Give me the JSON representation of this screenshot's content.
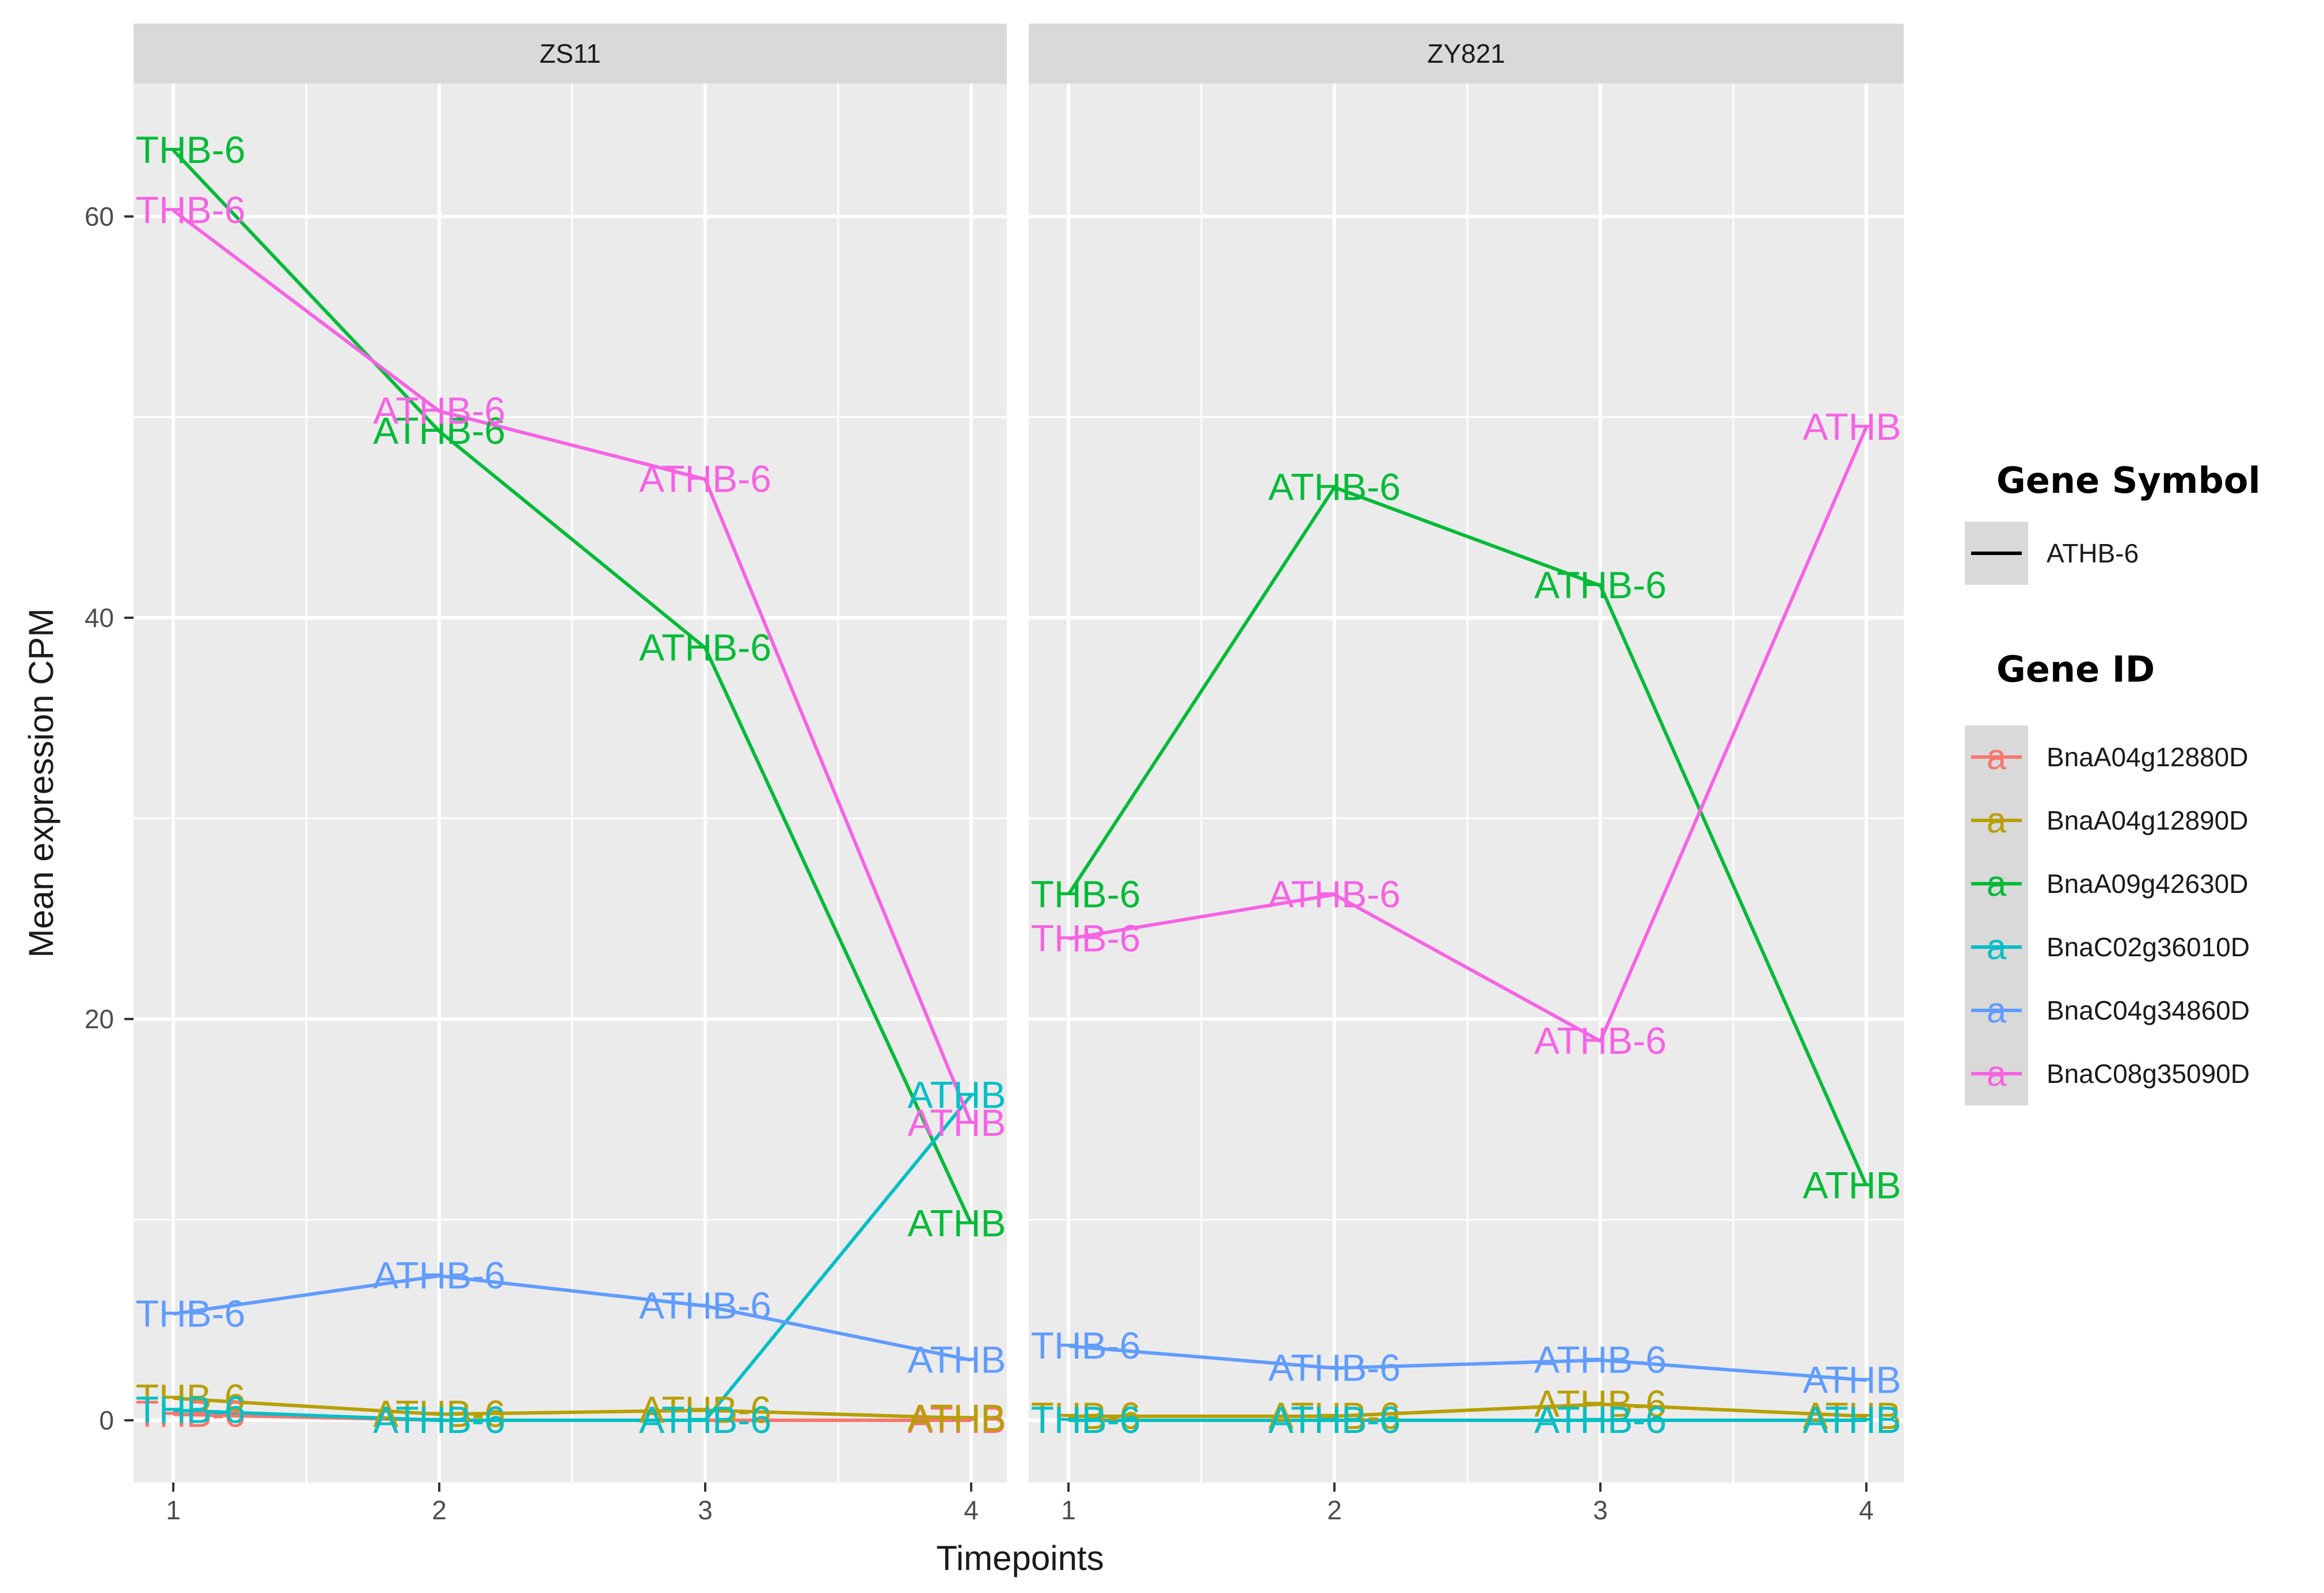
{
  "chart_data": {
    "type": "line",
    "xlabel": "Timepoints",
    "ylabel": "Mean expression CPM",
    "x": [
      1,
      2,
      3,
      4
    ],
    "x_ticks": [
      "1",
      "2",
      "3",
      "4"
    ],
    "y_ticks": [
      "0",
      "20",
      "40",
      "60"
    ],
    "ylim": [
      -3.2,
      67.3
    ],
    "grid": true,
    "panels": [
      {
        "name": "ZS11",
        "series": [
          {
            "gene_id": "BnaA04g12880D",
            "values": [
              0.3,
              0.0,
              0.0,
              0.0
            ],
            "label_texts": [
              "THB-6",
              "ATHB-6",
              "ATHB-6",
              "ATHB"
            ]
          },
          {
            "gene_id": "BnaA04g12890D",
            "values": [
              1.1,
              0.3,
              0.5,
              0.1
            ],
            "label_texts": [
              "THB-6",
              "ATHB-6",
              "ATHB-6",
              "ATHB"
            ]
          },
          {
            "gene_id": "BnaA09g42630D",
            "values": [
              63.3,
              49.3,
              38.5,
              9.8
            ],
            "label_texts": [
              "THB-6",
              "ATHB-6",
              "ATHB-6",
              "ATHB"
            ]
          },
          {
            "gene_id": "BnaC02g36010D",
            "values": [
              0.5,
              0.0,
              0.0,
              16.2
            ],
            "label_texts": [
              "THB-6",
              "ATHB-6",
              "ATHB-6",
              "ATHB"
            ]
          },
          {
            "gene_id": "BnaC04g34860D",
            "values": [
              5.3,
              7.2,
              5.7,
              3.0
            ],
            "label_texts": [
              "THB-6",
              "ATHB-6",
              "ATHB-6",
              "ATHB"
            ]
          },
          {
            "gene_id": "BnaC08g35090D",
            "values": [
              60.3,
              50.3,
              46.9,
              14.8
            ],
            "label_texts": [
              "THB-6",
              "ATHB-6",
              "ATHB-6",
              "ATHB"
            ]
          }
        ]
      },
      {
        "name": "ZY821",
        "series": [
          {
            "gene_id": "BnaA04g12880D",
            "values": [
              0.0,
              0.0,
              0.0,
              0.0
            ],
            "label_texts": [
              "THB-6",
              "ATHB-6",
              "ATHB-6",
              "ATHB"
            ]
          },
          {
            "gene_id": "BnaA04g12890D",
            "values": [
              0.2,
              0.2,
              0.8,
              0.2
            ],
            "label_texts": [
              "THB-6",
              "ATHB-6",
              "ATHB-6",
              "ATHB"
            ]
          },
          {
            "gene_id": "BnaA09g42630D",
            "values": [
              26.2,
              46.5,
              41.6,
              11.7
            ],
            "label_texts": [
              "THB-6",
              "ATHB-6",
              "ATHB-6",
              "ATHB"
            ]
          },
          {
            "gene_id": "BnaC02g36010D",
            "values": [
              0.0,
              0.0,
              0.0,
              0.0
            ],
            "label_texts": [
              "THB-6",
              "ATHB-6",
              "ATHB-6",
              "ATHB"
            ]
          },
          {
            "gene_id": "BnaC04g34860D",
            "values": [
              3.7,
              2.6,
              3.0,
              2.0
            ],
            "label_texts": [
              "THB-6",
              "ATHB-6",
              "ATHB-6",
              "ATHB"
            ]
          },
          {
            "gene_id": "BnaC08g35090D",
            "values": [
              24.0,
              26.2,
              18.9,
              49.5
            ],
            "label_texts": [
              "THB-6",
              "ATHB-6",
              "ATHB-6",
              "ATHB"
            ]
          }
        ]
      }
    ],
    "legend": {
      "placement": "right",
      "gene_symbol_title": "Gene Symbol",
      "gene_symbol_items": [
        "ATHB-6"
      ],
      "gene_id_title": "Gene ID",
      "key_glyph": "a",
      "gene_ids": [
        "BnaA04g12880D",
        "BnaA04g12890D",
        "BnaA09g42630D",
        "BnaC02g36010D",
        "BnaC04g34860D",
        "BnaC08g35090D"
      ]
    },
    "colors": {
      "BnaA04g12880D": "#F8766D",
      "BnaA04g12890D": "#B79F00",
      "BnaA09g42630D": "#00BA38",
      "BnaC02g36010D": "#00BFC4",
      "BnaC04g34860D": "#619CFF",
      "BnaC08g35090D": "#F564E3",
      "panel_background": "#EBEBEB",
      "strip_background": "#D9D9D9",
      "grid": "#FFFFFF",
      "axis_text": "#4D4D4D",
      "title_text": "#1A1A1A"
    }
  }
}
